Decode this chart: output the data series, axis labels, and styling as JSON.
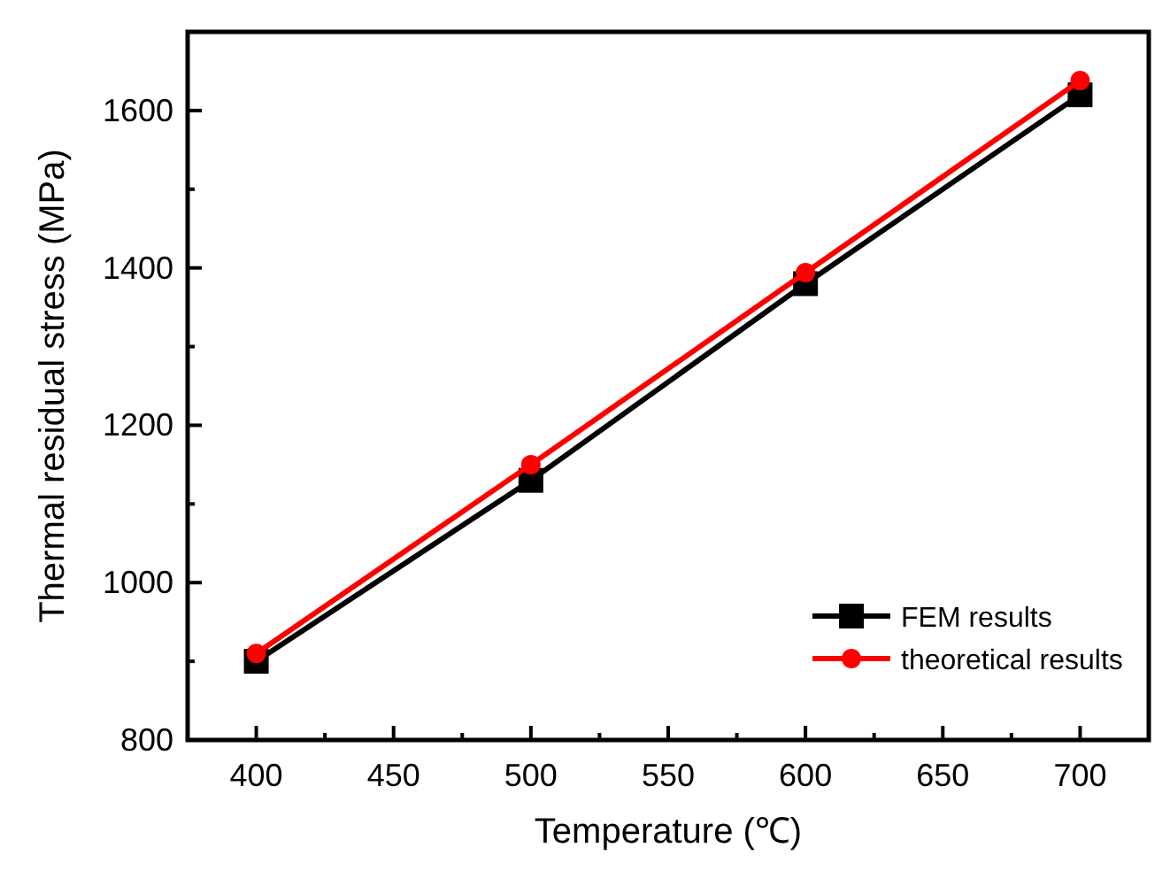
{
  "chart_data": {
    "type": "line",
    "xlabel": "Temperature (℃)",
    "ylabel": "Thermal residual stress (MPa)",
    "x": [
      400,
      500,
      600,
      700
    ],
    "series": [
      {
        "name": "FEM results",
        "color": "#000000",
        "marker": "square",
        "values": [
          900,
          1130,
          1380,
          1620
        ]
      },
      {
        "name": "theoretical results",
        "color": "#ff0000",
        "marker": "circle",
        "values": [
          910,
          1150,
          1394,
          1638
        ]
      }
    ],
    "xlim": [
      375,
      725
    ],
    "xticks": [
      400,
      {
        "value": 425,
        "label": null
      },
      450,
      {
        "value": 475,
        "label": null
      },
      500,
      {
        "value": 525,
        "label": null
      },
      550,
      {
        "value": 575,
        "label": null
      },
      600,
      {
        "value": 625,
        "label": null
      },
      650,
      {
        "value": 675,
        "label": null
      },
      700
    ],
    "ylim": [
      800,
      1700
    ],
    "yticks": [
      800,
      {
        "value": 900,
        "label": null
      },
      1000,
      {
        "value": 1100,
        "label": null
      },
      1200,
      {
        "value": 1300,
        "label": null
      },
      1400,
      {
        "value": 1500,
        "label": null
      },
      1600
    ],
    "legend": "bottom right",
    "grid": false,
    "line_style": "solid"
  }
}
